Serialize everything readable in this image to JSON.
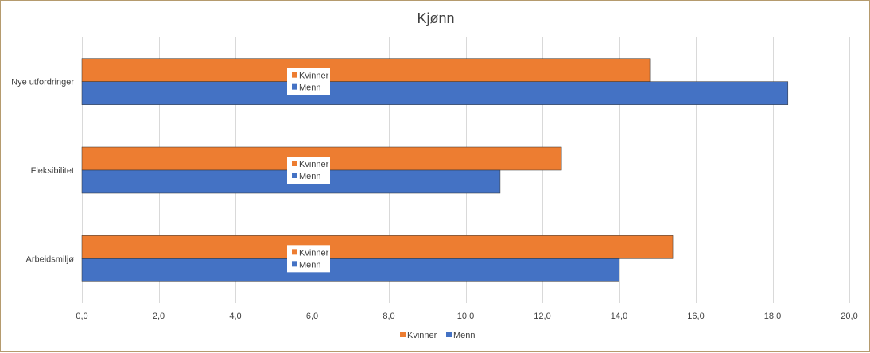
{
  "chart_data": {
    "type": "bar",
    "orientation": "horizontal",
    "title": "Kjønn",
    "categories": [
      "Nye utfordringer",
      "Fleksibilitet",
      "Arbeidsmiljø"
    ],
    "series": [
      {
        "name": "Kvinner",
        "color": "#ed7d31",
        "values": [
          14.8,
          12.5,
          15.4
        ]
      },
      {
        "name": "Menn",
        "color": "#4472c4",
        "values": [
          18.4,
          10.9,
          14.0
        ]
      }
    ],
    "xlim": [
      0,
      20
    ],
    "xticks": [
      "0,0",
      "2,0",
      "4,0",
      "6,0",
      "8,0",
      "10,0",
      "12,0",
      "14,0",
      "16,0",
      "18,0",
      "20,0"
    ],
    "xtick_values": [
      0,
      2,
      4,
      6,
      8,
      10,
      12,
      14,
      16,
      18,
      20
    ],
    "grid": true,
    "legend_position": "bottom"
  }
}
